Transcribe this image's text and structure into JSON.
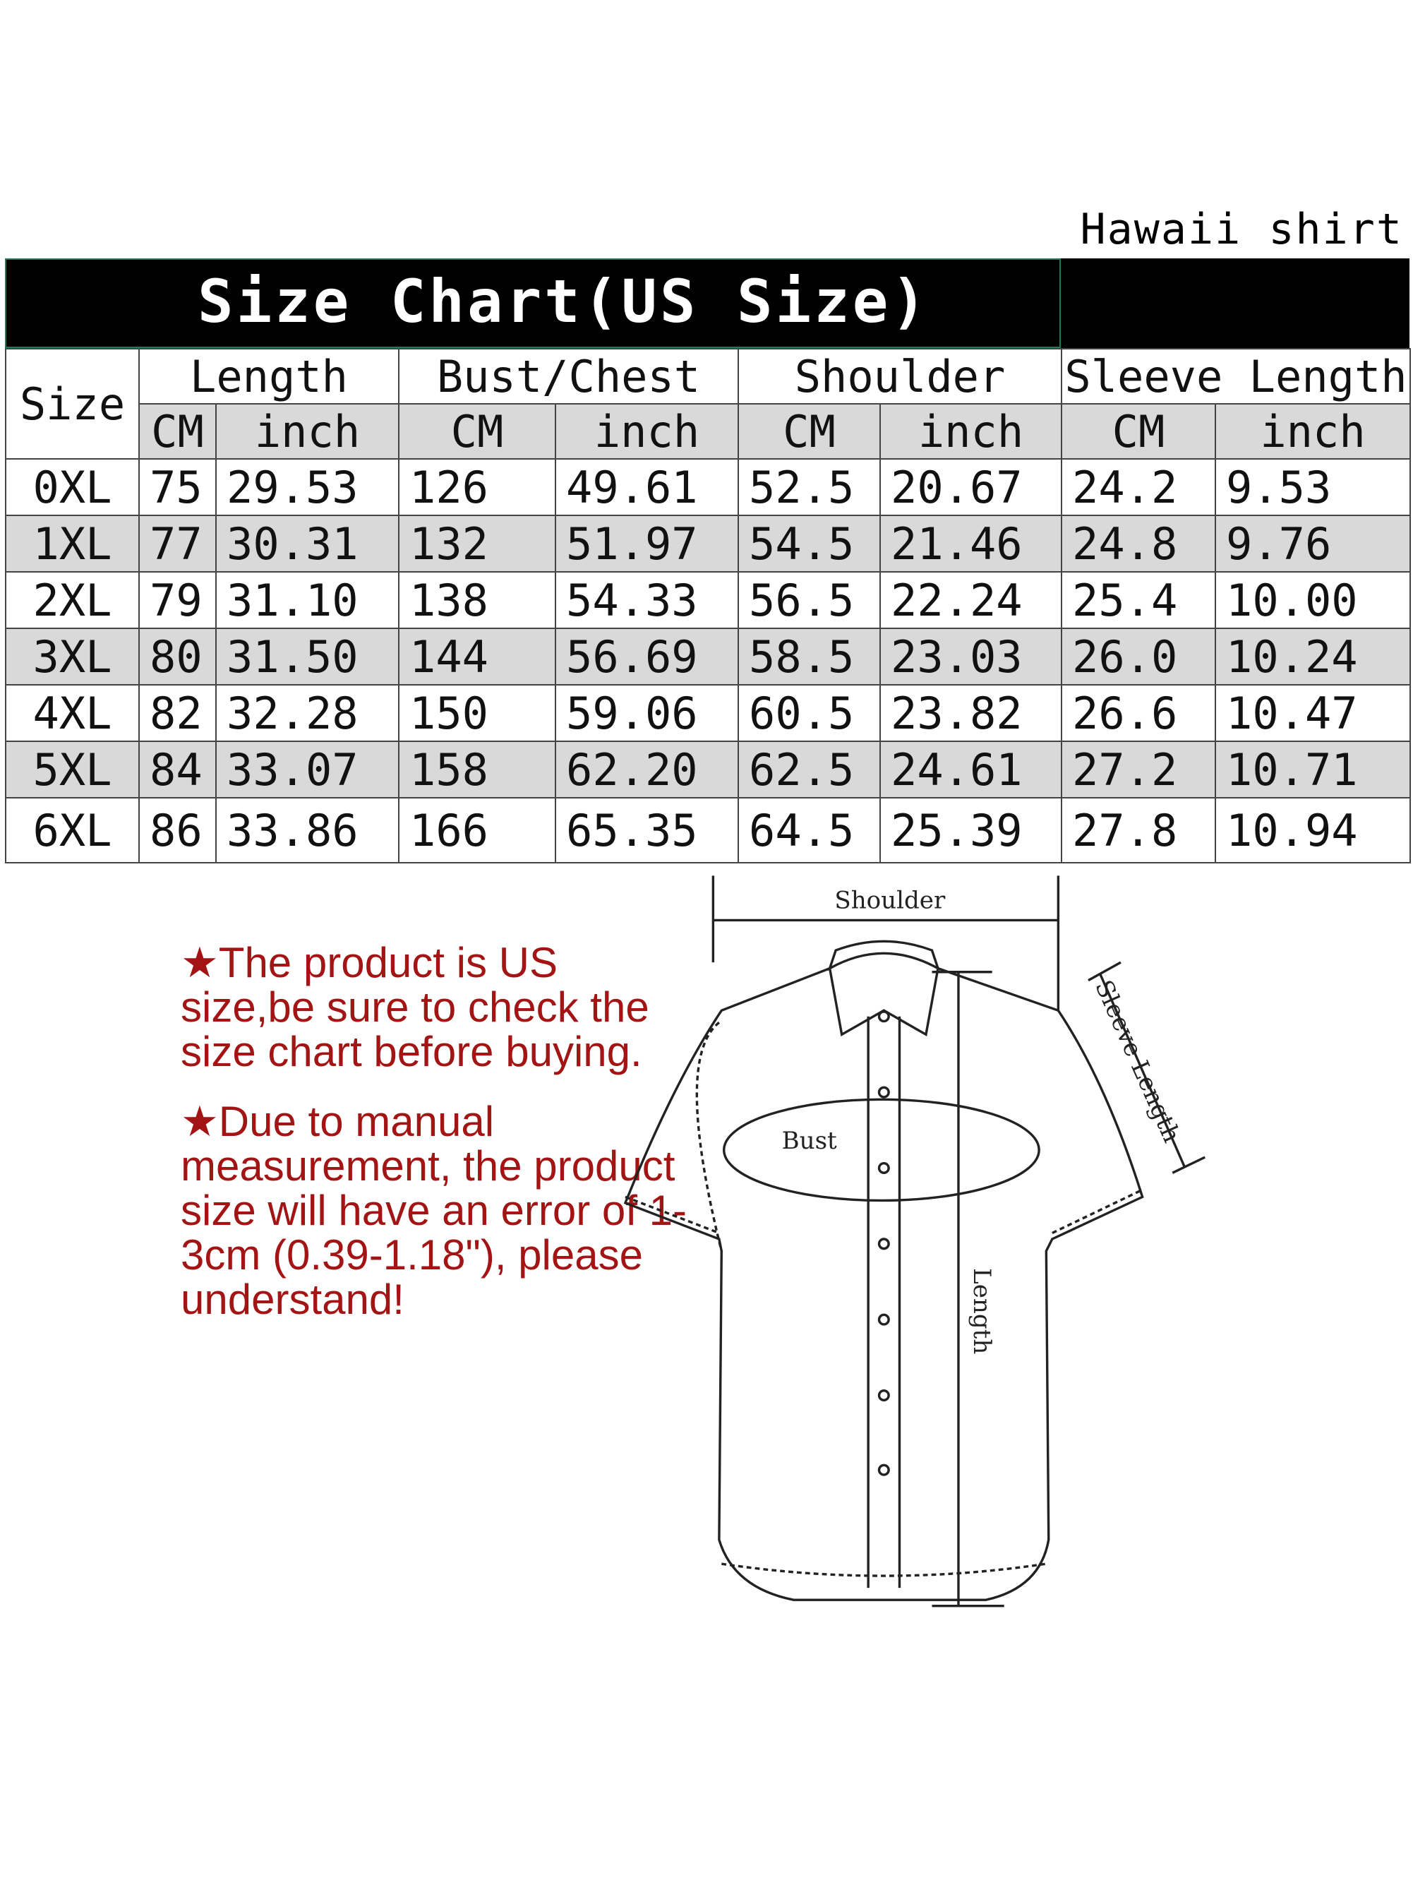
{
  "product_label": "Hawaii shirt",
  "title": "Size Chart(US Size)",
  "table": {
    "size_header": "Size",
    "groups": [
      "Length",
      "Bust/Chest",
      "Shoulder",
      "Sleeve Length"
    ],
    "units": [
      "CM",
      "inch",
      "CM",
      "inch",
      "CM",
      "inch",
      "CM",
      "inch"
    ],
    "rows": [
      [
        "0XL",
        "75",
        "29.53",
        "126",
        "49.61",
        "52.5",
        "20.67",
        "24.2",
        "9.53"
      ],
      [
        "1XL",
        "77",
        "30.31",
        "132",
        "51.97",
        "54.5",
        "21.46",
        "24.8",
        "9.76"
      ],
      [
        "2XL",
        "79",
        "31.10",
        "138",
        "54.33",
        "56.5",
        "22.24",
        "25.4",
        "10.00"
      ],
      [
        "3XL",
        "80",
        "31.50",
        "144",
        "56.69",
        "58.5",
        "23.03",
        "26.0",
        "10.24"
      ],
      [
        "4XL",
        "82",
        "32.28",
        "150",
        "59.06",
        "60.5",
        "23.82",
        "26.6",
        "10.47"
      ],
      [
        "5XL",
        "84",
        "33.07",
        "158",
        "62.20",
        "62.5",
        "24.61",
        "27.2",
        "10.71"
      ],
      [
        "6XL",
        "86",
        "33.86",
        "166",
        "65.35",
        "64.5",
        "25.39",
        "27.8",
        "10.94"
      ]
    ]
  },
  "notes": [
    "★The product is US size,be sure to check the size chart before buying.",
    "★Due to manual measurement, the product size will have an error of 1-3cm (0.39-1.18\"), please understand!"
  ],
  "diagram": {
    "shoulder": "Shoulder",
    "bust": "Bust",
    "length": "Length",
    "sleeve_length": "Sleeve Length"
  },
  "colors": {
    "header_band": "#000000",
    "alt_row": "#d9d9d9",
    "note_text": "#a31515"
  }
}
